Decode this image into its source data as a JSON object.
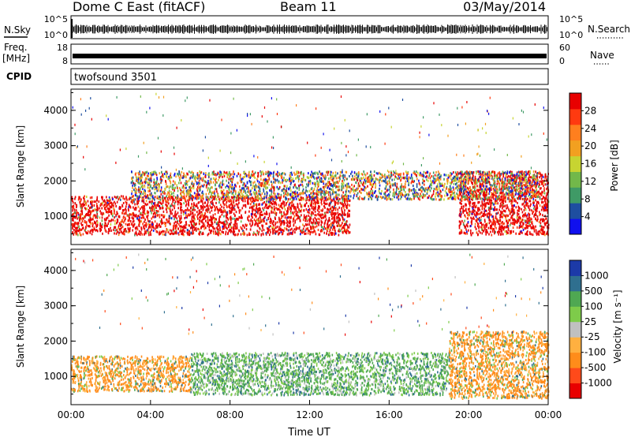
{
  "header": {
    "station": "Dome C East (fitACF)",
    "beam": "Beam 11",
    "date": "03/May/2014"
  },
  "top_panels": {
    "nsky_label": "N.Sky",
    "nsky_top_tick": "10^5",
    "nsky_bottom_tick": "10^0",
    "nsearch_label": "N.Search",
    "nsearch_top_tick": "10^5",
    "nsearch_bottom_tick": "10^0",
    "freq_label": "Freq.",
    "freq_unit": "[MHz]",
    "freq_top_tick": "18",
    "freq_bottom_tick": "8",
    "nave_label": "Nave",
    "nave_top_tick": "60",
    "nave_bottom_tick": "0",
    "cpid_label": "CPID",
    "cpid_value": "twofsound 3501"
  },
  "colors": {
    "power": [
      "#1010ee",
      "#1e4ea0",
      "#3f9a66",
      "#72b84a",
      "#c7d431",
      "#f2a020",
      "#ff7f1e",
      "#ff3a10",
      "#e80000"
    ],
    "velocity": [
      "#e80000",
      "#ff4a1a",
      "#ff8c1a",
      "#ffb040",
      "#c0c0c0",
      "#7ecb4a",
      "#4fa852",
      "#2f6f8f",
      "#1c3aa8"
    ]
  },
  "chart_data": [
    {
      "type": "heatmap",
      "name": "power-panel",
      "ylabel": "Slant Range [km]",
      "yticks": [
        "1000",
        "2000",
        "3000",
        "4000"
      ],
      "ylim": [
        200,
        4600
      ],
      "xlim_hours": [
        0,
        24
      ],
      "colorbar_label": "Power [dB]",
      "colorbar_ticks": [
        "4",
        "8",
        "12",
        "16",
        "20",
        "24",
        "28"
      ],
      "colorbar_range": [
        0,
        32
      ],
      "scatter_layers": [
        {
          "t0": 0,
          "t1": 14,
          "r_min": 500,
          "r_max": 1600,
          "dominant": "red"
        },
        {
          "t0": 19.5,
          "t1": 24,
          "r_min": 500,
          "r_max": 2300,
          "dominant": "red"
        },
        {
          "t0": 3,
          "t1": 23.5,
          "r_min": 1500,
          "r_max": 2300,
          "dominant": "mixed"
        }
      ]
    },
    {
      "type": "heatmap",
      "name": "velocity-panel",
      "ylabel": "Slant Range [km]",
      "yticks": [
        "1000",
        "2000",
        "3000",
        "4000"
      ],
      "ylim": [
        200,
        4600
      ],
      "xlim_hours": [
        0,
        24
      ],
      "xticks": [
        "00:00",
        "04:00",
        "08:00",
        "12:00",
        "16:00",
        "20:00",
        "00:00"
      ],
      "xlabel": "Time UT",
      "colorbar_label": "Velocity [m s⁻¹]",
      "colorbar_ticks": [
        "1000",
        "500",
        "100",
        "25",
        "-25",
        "-100",
        "-500",
        "-1000"
      ],
      "scatter_layers": [
        {
          "t0": 0,
          "t1": 6,
          "r_min": 600,
          "r_max": 1600,
          "dominant": "orange"
        },
        {
          "t0": 6,
          "t1": 19,
          "r_min": 500,
          "r_max": 1700,
          "dominant": "green"
        },
        {
          "t0": 19,
          "t1": 24,
          "r_min": 400,
          "r_max": 2300,
          "dominant": "orange"
        }
      ]
    }
  ]
}
